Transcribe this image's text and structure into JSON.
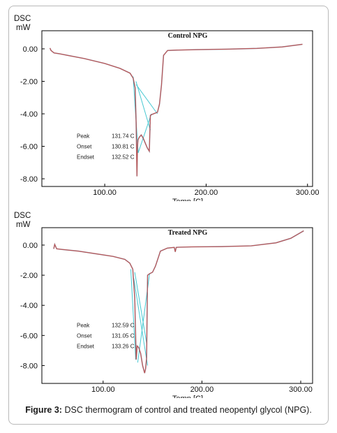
{
  "caption": {
    "label": "Figure 3:",
    "text": "DSC thermogram of control and treated neopentyl glycol (NPG)."
  },
  "colors": {
    "curve": "#c0504d",
    "construction": "#46c8d2",
    "overlay": "#3c3c64",
    "frame": "#b9b9b9"
  },
  "chart_data": [
    {
      "type": "line",
      "title": "Control NPG",
      "ylabel_line1": "DSC",
      "ylabel_line2": "mW",
      "xlabel": "Temp   [C]",
      "xlim": [
        38,
        305
      ],
      "ylim": [
        -8.3,
        0.6
      ],
      "xticks": [
        100,
        200,
        300
      ],
      "xtick_labels": [
        "100.00",
        "200.00",
        "300.00"
      ],
      "yticks": [
        0,
        -2,
        -4,
        -6,
        -8
      ],
      "ytick_labels": [
        "0.00",
        "-2.00",
        "-4.00",
        "-6.00",
        "-8.00"
      ],
      "grid": false,
      "annotations": [
        {
          "label": "Peak",
          "value": "131.74 C"
        },
        {
          "label": "Onset",
          "value": "130.81 C"
        },
        {
          "label": "Endset",
          "value": "132.52 C"
        }
      ],
      "series": [
        {
          "x": [
            46,
            47,
            50,
            55,
            65,
            80,
            100,
            115,
            125,
            128,
            130,
            131,
            131.8,
            132.3,
            132.8,
            134,
            136,
            138,
            140,
            142,
            144,
            145,
            146,
            148,
            152,
            154,
            156,
            158,
            162,
            170,
            190,
            220,
            250,
            275,
            295
          ],
          "y": [
            0.05,
            -0.1,
            -0.25,
            -0.3,
            -0.42,
            -0.6,
            -0.9,
            -1.2,
            -1.5,
            -1.8,
            -2.4,
            -4.5,
            -7.85,
            -6.0,
            -5.6,
            -5.45,
            -5.3,
            -5.5,
            -5.8,
            -6.1,
            -6.3,
            -4.1,
            -4.05,
            -4.0,
            -3.9,
            -3.4,
            -2.2,
            -0.4,
            -0.1,
            -0.08,
            -0.05,
            -0.02,
            0.03,
            0.12,
            0.28
          ]
        }
      ],
      "construction_lines": [
        {
          "x": [
            128,
            133
          ],
          "y": [
            -1.7,
            -6.4
          ]
        },
        {
          "x": [
            130.8,
            145
          ],
          "y": [
            -2.0,
            -5.0
          ]
        },
        {
          "x": [
            133,
            146
          ],
          "y": [
            -6.4,
            -4.0
          ]
        },
        {
          "x": [
            131,
            152
          ],
          "y": [
            -2.2,
            -4.0
          ]
        }
      ]
    },
    {
      "type": "line",
      "title": "Treated NPG",
      "ylabel_line1": "DSC",
      "ylabel_line2": "mW",
      "xlabel": "Temp   [C]",
      "xlim": [
        38,
        312
      ],
      "ylim": [
        -9.0,
        0.6
      ],
      "xticks": [
        100,
        200,
        300
      ],
      "xtick_labels": [
        "100.00",
        "200.00",
        "300.00"
      ],
      "yticks": [
        0,
        -2,
        -4,
        -6,
        -8
      ],
      "ytick_labels": [
        "0.00",
        "-2.00",
        "-4.00",
        "-6.00",
        "-8.00"
      ],
      "grid": false,
      "annotations": [
        {
          "label": "Peak",
          "value": "132.59 C"
        },
        {
          "label": "Onset",
          "value": "131.05 C"
        },
        {
          "label": "Endset",
          "value": "133.26 C"
        }
      ],
      "series": [
        {
          "x": [
            50,
            51,
            53,
            60,
            75,
            90,
            110,
            122,
            127,
            130,
            132,
            133.5,
            134.5,
            136,
            138,
            140,
            142,
            143,
            144,
            145,
            147,
            150,
            153,
            158,
            165,
            172,
            173,
            174,
            176,
            190,
            220,
            250,
            275,
            290,
            303
          ],
          "y": [
            -0.25,
            0.05,
            -0.25,
            -0.3,
            -0.4,
            -0.55,
            -0.75,
            -0.95,
            -1.2,
            -1.6,
            -3.5,
            -7.6,
            -6.7,
            -6.8,
            -7.2,
            -8.0,
            -8.5,
            -8.2,
            -7.5,
            -2.0,
            -1.9,
            -1.8,
            -1.4,
            -0.4,
            -0.2,
            -0.15,
            -0.45,
            -0.15,
            -0.14,
            -0.12,
            -0.1,
            -0.05,
            0.15,
            0.45,
            0.95
          ]
        }
      ],
      "construction_lines": [
        {
          "x": [
            128,
            133
          ],
          "y": [
            -1.6,
            -7.6
          ]
        },
        {
          "x": [
            131,
            145
          ],
          "y": [
            -2.2,
            -8.0
          ]
        },
        {
          "x": [
            135,
            147
          ],
          "y": [
            -7.8,
            -1.9
          ]
        },
        {
          "x": [
            132,
            144
          ],
          "y": [
            -1.8,
            -6.5
          ]
        }
      ]
    }
  ]
}
